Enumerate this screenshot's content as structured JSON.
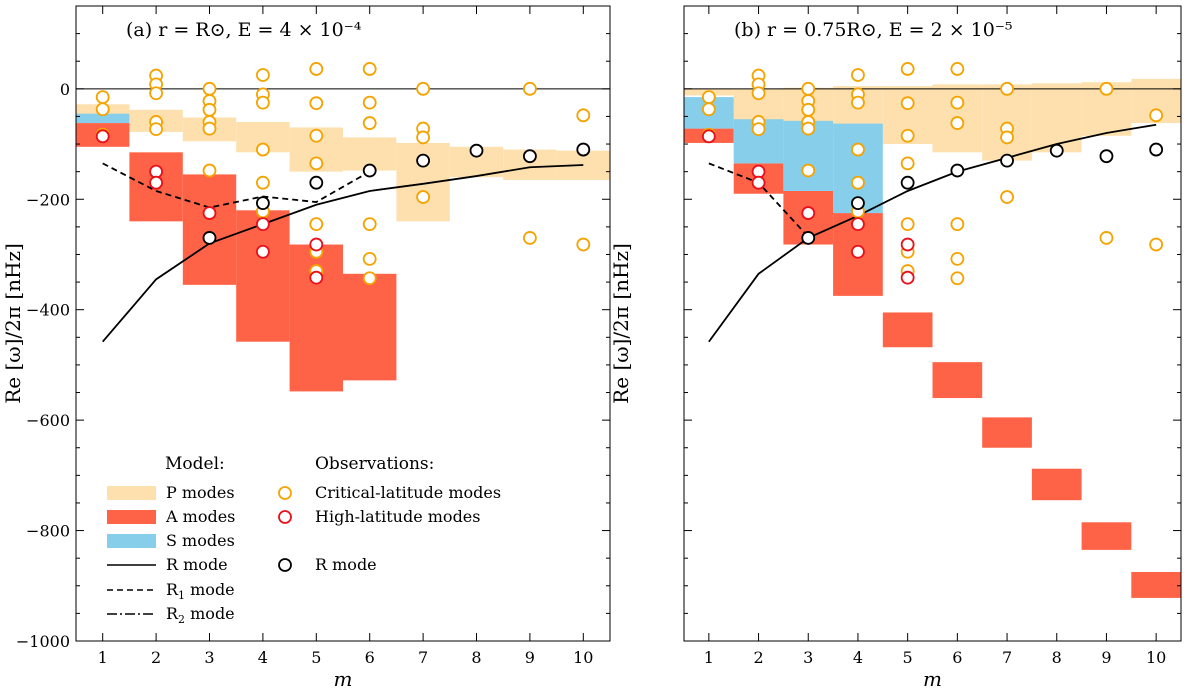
{
  "colors": {
    "P": "#fde0ad",
    "A": "#ff6347",
    "S": "#87ceeb",
    "obs_critical": "#f5a300",
    "obs_high": "#e8101a",
    "obs_R": "#000000"
  },
  "shared_axes": {
    "xlabel": "m",
    "ylabel": "Re [ω]/2π  [nHz]",
    "xlim": [
      0.5,
      10.5
    ],
    "ylim": [
      -1000,
      150
    ],
    "xticks": [
      "1",
      "2",
      "3",
      "4",
      "5",
      "6",
      "7",
      "8",
      "9",
      "10"
    ],
    "yticks": [
      0,
      -200,
      -400,
      -600,
      -800,
      -1000
    ],
    "ytick_labels": [
      "0",
      "−200",
      "−400",
      "−600",
      "−800",
      "−1000"
    ]
  },
  "legend": {
    "model_title": "Model:",
    "obs_title": "Observations:",
    "p_modes": "P modes",
    "a_modes": "A modes",
    "s_modes": "S modes",
    "r_mode": "R mode",
    "r1_mode": "R",
    "r1_sub": "1",
    "r1_suffix": " mode",
    "r2_mode": "R",
    "r2_sub": "2",
    "r2_suffix": " mode",
    "crit_modes": "Critical-latitude modes",
    "high_modes": "High-latitude modes",
    "obs_r_mode": "R mode"
  },
  "chart_data": [
    {
      "type": "scatter",
      "panel": "a",
      "title": "(a) r = R⊙, E = 4 × 10⁻⁴",
      "xlabel": "m",
      "ylabel": "Re [ω]/2π  [nHz]",
      "xlim": [
        0.5,
        10.5
      ],
      "ylim": [
        -1000,
        150
      ],
      "model": {
        "P_bands": [
          {
            "m": 1,
            "low": -48,
            "high": -28
          },
          {
            "m": 2,
            "low": -78,
            "high": -38
          },
          {
            "m": 3,
            "low": -95,
            "high": -52
          },
          {
            "m": 4,
            "low": -115,
            "high": -60
          },
          {
            "m": 5,
            "low": -150,
            "high": -70
          },
          {
            "m": 6,
            "low": -148,
            "high": -88
          },
          {
            "m": 7,
            "low": -240,
            "high": -98
          },
          {
            "m": 8,
            "low": -160,
            "high": -105
          },
          {
            "m": 9,
            "low": -165,
            "high": -110
          },
          {
            "m": 10,
            "low": -165,
            "high": -112
          }
        ],
        "A_bands": [
          {
            "m": 1,
            "low": -105,
            "high": -62
          },
          {
            "m": 2,
            "low": -240,
            "high": -115
          },
          {
            "m": 3,
            "low": -355,
            "high": -155
          },
          {
            "m": 4,
            "low": -458,
            "high": -220
          },
          {
            "m": 5,
            "low": -548,
            "high": -282
          },
          {
            "m": 6,
            "low": -528,
            "high": -335
          }
        ],
        "S_bands": [
          {
            "m": 1,
            "low": -62,
            "high": -45
          }
        ],
        "R_mode": {
          "m": [
            1,
            2,
            3,
            4,
            5,
            6,
            7,
            8,
            9,
            10
          ],
          "value": [
            -458,
            -345,
            -280,
            -245,
            -210,
            -185,
            -172,
            -158,
            -142,
            -138
          ]
        },
        "R1_mode": {
          "m": [
            1,
            2,
            3,
            4,
            5,
            6
          ],
          "value": [
            -135,
            -185,
            -215,
            -195,
            -205,
            -150
          ]
        }
      },
      "observations": {
        "critical_latitude": [
          {
            "m": 1,
            "value": -15
          },
          {
            "m": 1,
            "value": -37
          },
          {
            "m": 1,
            "value": -83
          },
          {
            "m": 2,
            "value": 24
          },
          {
            "m": 2,
            "value": 8
          },
          {
            "m": 2,
            "value": -8
          },
          {
            "m": 2,
            "value": -60
          },
          {
            "m": 2,
            "value": -73
          },
          {
            "m": 3,
            "value": 0
          },
          {
            "m": 3,
            "value": -22
          },
          {
            "m": 3,
            "value": -38
          },
          {
            "m": 3,
            "value": -60
          },
          {
            "m": 3,
            "value": -72
          },
          {
            "m": 3,
            "value": -148
          },
          {
            "m": 4,
            "value": 25
          },
          {
            "m": 4,
            "value": -10
          },
          {
            "m": 4,
            "value": -25
          },
          {
            "m": 4,
            "value": -110
          },
          {
            "m": 4,
            "value": -170
          },
          {
            "m": 4,
            "value": -222
          },
          {
            "m": 5,
            "value": 36
          },
          {
            "m": 5,
            "value": -26
          },
          {
            "m": 5,
            "value": -85
          },
          {
            "m": 5,
            "value": -135
          },
          {
            "m": 5,
            "value": -245
          },
          {
            "m": 5,
            "value": -295
          },
          {
            "m": 5,
            "value": -330
          },
          {
            "m": 6,
            "value": 36
          },
          {
            "m": 6,
            "value": -25
          },
          {
            "m": 6,
            "value": -62
          },
          {
            "m": 6,
            "value": -245
          },
          {
            "m": 6,
            "value": -308
          },
          {
            "m": 6,
            "value": -343
          },
          {
            "m": 7,
            "value": 0
          },
          {
            "m": 7,
            "value": -72
          },
          {
            "m": 7,
            "value": -88
          },
          {
            "m": 7,
            "value": -196
          },
          {
            "m": 9,
            "value": 0
          },
          {
            "m": 9,
            "value": -270
          },
          {
            "m": 10,
            "value": -48
          },
          {
            "m": 10,
            "value": -282
          }
        ],
        "high_latitude": [
          {
            "m": 1,
            "value": -86
          },
          {
            "m": 2,
            "value": -150
          },
          {
            "m": 2,
            "value": -170
          },
          {
            "m": 3,
            "value": -225
          },
          {
            "m": 4,
            "value": -245
          },
          {
            "m": 4,
            "value": -295
          },
          {
            "m": 5,
            "value": -282
          },
          {
            "m": 5,
            "value": -342
          }
        ],
        "R_mode": [
          {
            "m": 3,
            "value": -270
          },
          {
            "m": 4,
            "value": -207
          },
          {
            "m": 5,
            "value": -170
          },
          {
            "m": 6,
            "value": -148
          },
          {
            "m": 7,
            "value": -130
          },
          {
            "m": 8,
            "value": -112
          },
          {
            "m": 9,
            "value": -122
          },
          {
            "m": 10,
            "value": -110
          }
        ]
      }
    },
    {
      "type": "scatter",
      "panel": "b",
      "title": "(b) r = 0.75R⊙, E = 2 × 10⁻⁵",
      "xlabel": "m",
      "ylabel": "Re [ω]/2π  [nHz]",
      "xlim": [
        0.5,
        10.5
      ],
      "ylim": [
        -1000,
        150
      ],
      "model": {
        "P_bands": [
          {
            "m": 1,
            "low": -12,
            "high": 0
          },
          {
            "m": 2,
            "low": -60,
            "high": 0
          },
          {
            "m": 3,
            "low": -70,
            "high": 2
          },
          {
            "m": 4,
            "low": -85,
            "high": 5
          },
          {
            "m": 5,
            "low": -100,
            "high": 5
          },
          {
            "m": 6,
            "low": -115,
            "high": 8
          },
          {
            "m": 7,
            "low": -130,
            "high": 8
          },
          {
            "m": 8,
            "low": -115,
            "high": 10
          },
          {
            "m": 9,
            "low": -85,
            "high": 12
          },
          {
            "m": 10,
            "low": -62,
            "high": 18
          }
        ],
        "A_bands": [
          {
            "m": 1,
            "low": -98,
            "high": -72
          },
          {
            "m": 2,
            "low": -190,
            "high": -135
          },
          {
            "m": 3,
            "low": -282,
            "high": -185
          },
          {
            "m": 4,
            "low": -375,
            "high": -225
          },
          {
            "m": 5,
            "low": -468,
            "high": -405
          },
          {
            "m": 6,
            "low": -560,
            "high": -495
          },
          {
            "m": 7,
            "low": -650,
            "high": -595
          },
          {
            "m": 8,
            "low": -745,
            "high": -688
          },
          {
            "m": 9,
            "low": -835,
            "high": -785
          },
          {
            "m": 10,
            "low": -922,
            "high": -875
          }
        ],
        "S_bands": [
          {
            "m": 1,
            "low": -72,
            "high": -15
          },
          {
            "m": 2,
            "low": -135,
            "high": -55
          },
          {
            "m": 3,
            "low": -185,
            "high": -58
          },
          {
            "m": 4,
            "low": -225,
            "high": -63
          }
        ],
        "R_mode": {
          "m": [
            1,
            2,
            3,
            4,
            5,
            6,
            7,
            8,
            9,
            10
          ],
          "value": [
            -458,
            -335,
            -270,
            -230,
            -185,
            -150,
            -125,
            -100,
            -80,
            -65
          ]
        },
        "R1_mode": {
          "m": [
            1,
            2,
            3
          ],
          "value": [
            -135,
            -170,
            -268
          ]
        }
      },
      "observations": {
        "critical_latitude": [
          {
            "m": 1,
            "value": -15
          },
          {
            "m": 1,
            "value": -37
          },
          {
            "m": 1,
            "value": -83
          },
          {
            "m": 2,
            "value": 24
          },
          {
            "m": 2,
            "value": 8
          },
          {
            "m": 2,
            "value": -8
          },
          {
            "m": 2,
            "value": -60
          },
          {
            "m": 2,
            "value": -73
          },
          {
            "m": 3,
            "value": 0
          },
          {
            "m": 3,
            "value": -22
          },
          {
            "m": 3,
            "value": -38
          },
          {
            "m": 3,
            "value": -60
          },
          {
            "m": 3,
            "value": -72
          },
          {
            "m": 3,
            "value": -148
          },
          {
            "m": 4,
            "value": 25
          },
          {
            "m": 4,
            "value": -10
          },
          {
            "m": 4,
            "value": -25
          },
          {
            "m": 4,
            "value": -110
          },
          {
            "m": 4,
            "value": -170
          },
          {
            "m": 4,
            "value": -222
          },
          {
            "m": 5,
            "value": 36
          },
          {
            "m": 5,
            "value": -26
          },
          {
            "m": 5,
            "value": -85
          },
          {
            "m": 5,
            "value": -135
          },
          {
            "m": 5,
            "value": -245
          },
          {
            "m": 5,
            "value": -295
          },
          {
            "m": 5,
            "value": -330
          },
          {
            "m": 6,
            "value": 36
          },
          {
            "m": 6,
            "value": -25
          },
          {
            "m": 6,
            "value": -62
          },
          {
            "m": 6,
            "value": -245
          },
          {
            "m": 6,
            "value": -308
          },
          {
            "m": 6,
            "value": -343
          },
          {
            "m": 7,
            "value": 0
          },
          {
            "m": 7,
            "value": -72
          },
          {
            "m": 7,
            "value": -88
          },
          {
            "m": 7,
            "value": -196
          },
          {
            "m": 9,
            "value": 0
          },
          {
            "m": 9,
            "value": -270
          },
          {
            "m": 10,
            "value": -48
          },
          {
            "m": 10,
            "value": -282
          }
        ],
        "high_latitude": [
          {
            "m": 1,
            "value": -86
          },
          {
            "m": 2,
            "value": -150
          },
          {
            "m": 2,
            "value": -170
          },
          {
            "m": 3,
            "value": -225
          },
          {
            "m": 4,
            "value": -245
          },
          {
            "m": 4,
            "value": -295
          },
          {
            "m": 5,
            "value": -282
          },
          {
            "m": 5,
            "value": -342
          }
        ],
        "R_mode": [
          {
            "m": 3,
            "value": -270
          },
          {
            "m": 4,
            "value": -207
          },
          {
            "m": 5,
            "value": -170
          },
          {
            "m": 6,
            "value": -148
          },
          {
            "m": 7,
            "value": -130
          },
          {
            "m": 8,
            "value": -112
          },
          {
            "m": 9,
            "value": -122
          },
          {
            "m": 10,
            "value": -110
          }
        ]
      }
    }
  ]
}
